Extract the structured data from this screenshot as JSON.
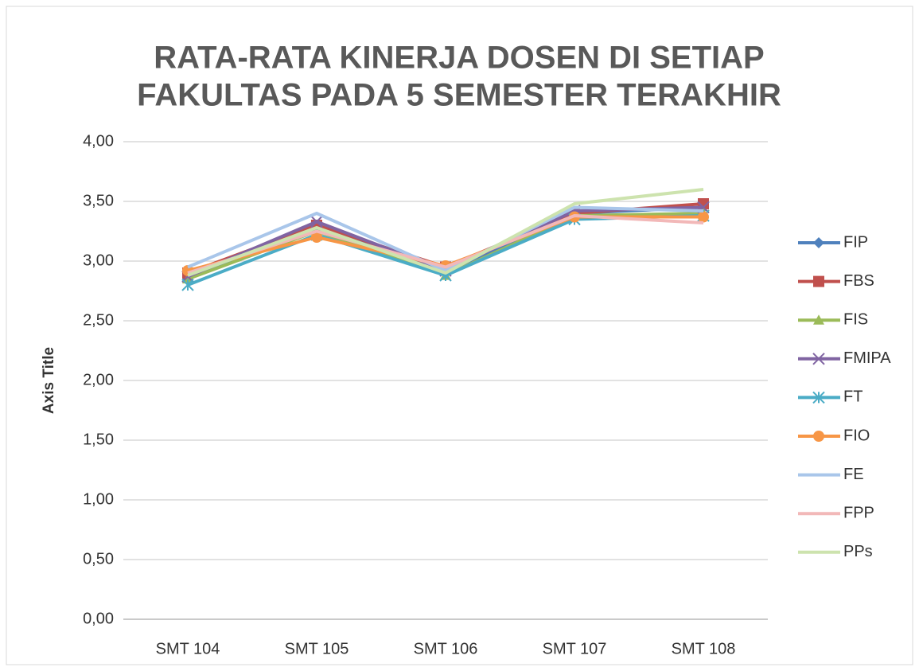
{
  "chart_data": {
    "type": "line",
    "title": [
      "RATA-RATA KINERJA DOSEN DI SETIAP",
      "FAKULTAS PADA 5 SEMESTER TERAKHIR"
    ],
    "y_axis_label": "Axis Title",
    "categories": [
      "SMT 104",
      "SMT 105",
      "SMT 106",
      "SMT 107",
      "SMT 108"
    ],
    "ylim": [
      0,
      4
    ],
    "yticks": [
      {
        "value": 0,
        "label": "0,00"
      },
      {
        "value": 0.5,
        "label": "0,50"
      },
      {
        "value": 1,
        "label": "1,00"
      },
      {
        "value": 1.5,
        "label": "1,50"
      },
      {
        "value": 2,
        "label": "2,00"
      },
      {
        "value": 2.5,
        "label": "2,50"
      },
      {
        "value": 3,
        "label": "3,00"
      },
      {
        "value": 3.5,
        "label": "3,50"
      },
      {
        "value": 4,
        "label": "4,00"
      }
    ],
    "grid": true,
    "legend": "right",
    "series": [
      {
        "name": "FIP",
        "color": "#4f81bd",
        "marker": "diamond",
        "values": [
          2.85,
          3.3,
          2.9,
          3.4,
          3.45
        ]
      },
      {
        "name": "FBS",
        "color": "#c0504d",
        "marker": "square",
        "values": [
          2.9,
          3.3,
          2.95,
          3.4,
          3.48
        ]
      },
      {
        "name": "FIS",
        "color": "#9bbb59",
        "marker": "triangle",
        "values": [
          2.85,
          3.25,
          2.88,
          3.38,
          3.4
        ]
      },
      {
        "name": "FMIPA",
        "color": "#8064a2",
        "marker": "x",
        "values": [
          2.87,
          3.33,
          2.92,
          3.42,
          3.45
        ]
      },
      {
        "name": "FT",
        "color": "#4bacc6",
        "marker": "star",
        "values": [
          2.8,
          3.22,
          2.88,
          3.35,
          3.38
        ]
      },
      {
        "name": "FIO",
        "color": "#f79646",
        "marker": "circle",
        "values": [
          2.92,
          3.2,
          2.96,
          3.37,
          3.37
        ]
      },
      {
        "name": "FE",
        "color": "#a9c6ea",
        "marker": "none",
        "values": [
          2.95,
          3.4,
          2.92,
          3.45,
          3.42
        ]
      },
      {
        "name": "FPP",
        "color": "#f2b8b8",
        "marker": "none",
        "values": [
          2.9,
          3.25,
          2.95,
          3.38,
          3.32
        ]
      },
      {
        "name": "PPs",
        "color": "#cde3ae",
        "marker": "none",
        "values": [
          2.88,
          3.28,
          2.9,
          3.48,
          3.6
        ]
      }
    ]
  }
}
